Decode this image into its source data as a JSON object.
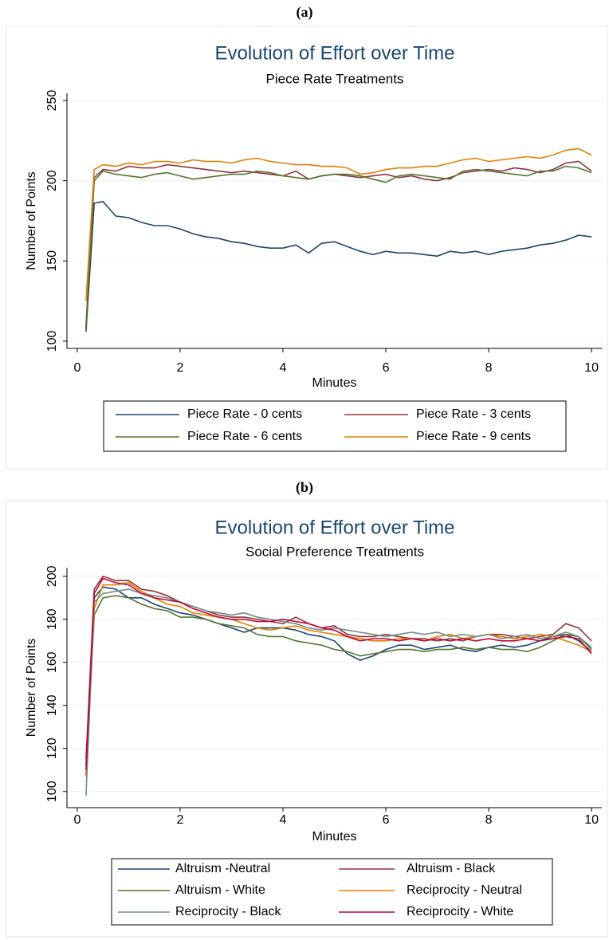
{
  "chart_data": [
    {
      "type": "line",
      "label": "(a)",
      "title": "Evolution of Effort over Time",
      "subtitle": "Piece Rate Treatments",
      "x_label": "Minutes",
      "y_label": "Number of Points",
      "x": [
        0.17,
        0.33,
        0.5,
        0.75,
        1,
        1.25,
        1.5,
        1.75,
        2,
        2.25,
        2.5,
        2.75,
        3,
        3.25,
        3.5,
        3.75,
        4,
        4.25,
        4.5,
        4.75,
        5,
        5.25,
        5.5,
        5.75,
        6,
        6.25,
        6.5,
        6.75,
        7,
        7.25,
        7.5,
        7.75,
        8,
        8.25,
        8.5,
        8.75,
        9,
        9.25,
        9.5,
        9.75,
        10
      ],
      "xlim": [
        -0.2,
        10.2
      ],
      "xticks": [
        0,
        2,
        4,
        6,
        8,
        10
      ],
      "ylim": [
        95.5,
        254.5
      ],
      "yticks": [
        100,
        150,
        200,
        250
      ],
      "grid": true,
      "legend": "bottom",
      "series": [
        {
          "name": "Piece Rate - 0 cents",
          "color": "#1a476f",
          "values": [
            106,
            186,
            187,
            178,
            177,
            174,
            172,
            172,
            170,
            167,
            165,
            164,
            162,
            161,
            159,
            158,
            158,
            160,
            155,
            161,
            162,
            159,
            156,
            154,
            156,
            155,
            155,
            154,
            153,
            156,
            155,
            156,
            154,
            156,
            157,
            158,
            160,
            161,
            163,
            166,
            165
          ]
        },
        {
          "name": "Piece Rate - 3 cents",
          "color": "#90353b",
          "values": [
            108,
            202,
            207,
            206,
            209,
            208,
            208,
            210,
            209,
            208,
            207,
            206,
            205,
            206,
            205,
            204,
            203,
            206,
            201,
            203,
            204,
            203,
            202,
            203,
            204,
            202,
            203,
            201,
            200,
            202,
            205,
            206,
            207,
            206,
            208,
            207,
            205,
            207,
            211,
            212,
            206
          ]
        },
        {
          "name": "Piece Rate - 6 cents",
          "color": "#55752f",
          "values": [
            110,
            200,
            206,
            204,
            203,
            202,
            204,
            205,
            203,
            201,
            202,
            203,
            204,
            204,
            206,
            205,
            203,
            202,
            201,
            203,
            204,
            204,
            203,
            201,
            199,
            203,
            204,
            203,
            202,
            201,
            206,
            207,
            206,
            205,
            204,
            203,
            206,
            206,
            209,
            208,
            205
          ]
        },
        {
          "name": "Piece Rate - 9 cents",
          "color": "#e37e00",
          "values": [
            125,
            207,
            210,
            209,
            211,
            210,
            212,
            212,
            211,
            213,
            212,
            212,
            211,
            213,
            214,
            212,
            211,
            210,
            210,
            209,
            209,
            208,
            204,
            205,
            207,
            208,
            208,
            209,
            209,
            211,
            213,
            214,
            212,
            213,
            214,
            215,
            214,
            216,
            219,
            220,
            216
          ]
        }
      ]
    },
    {
      "type": "line",
      "label": "(b)",
      "title": "Evolution of Effort over Time",
      "subtitle": "Social Preference Treatments",
      "x_label": "Minutes",
      "y_label": "Number of Points",
      "x": [
        0.17,
        0.33,
        0.5,
        0.75,
        1,
        1.25,
        1.5,
        1.75,
        2,
        2.25,
        2.5,
        2.75,
        3,
        3.25,
        3.5,
        3.75,
        4,
        4.25,
        4.5,
        4.75,
        5,
        5.25,
        5.5,
        5.75,
        6,
        6.25,
        6.5,
        6.75,
        7,
        7.25,
        7.5,
        7.75,
        8,
        8.25,
        8.5,
        8.75,
        9,
        9.25,
        9.5,
        9.75,
        10
      ],
      "xlim": [
        -0.2,
        10.2
      ],
      "xticks": [
        0,
        2,
        4,
        6,
        8,
        10
      ],
      "ylim": [
        92.5,
        204
      ],
      "yticks": [
        100,
        120,
        140,
        160,
        180,
        200
      ],
      "grid": true,
      "legend": "bottom",
      "series": [
        {
          "name": "Altruism -Neutral",
          "color": "#1a476f",
          "values": [
            112,
            190,
            195,
            194,
            190,
            190,
            187,
            185,
            183,
            182,
            180,
            178,
            176,
            174,
            176,
            176,
            176,
            175,
            173,
            172,
            170,
            164,
            161,
            163,
            166,
            168,
            168,
            166,
            167,
            168,
            166,
            165,
            167,
            168,
            167,
            168,
            170,
            172,
            173,
            170,
            165
          ]
        },
        {
          "name": "Altruism - Black",
          "color": "#90353b",
          "values": [
            115,
            194,
            200,
            198,
            198,
            194,
            193,
            191,
            188,
            186,
            184,
            182,
            181,
            181,
            180,
            179,
            178,
            181,
            178,
            176,
            177,
            173,
            172,
            172,
            173,
            172,
            171,
            171,
            170,
            171,
            170,
            172,
            173,
            173,
            172,
            171,
            172,
            173,
            178,
            176,
            170
          ]
        },
        {
          "name": "Altruism - White",
          "color": "#55752f",
          "values": [
            108,
            182,
            190,
            191,
            190,
            187,
            185,
            184,
            181,
            181,
            180,
            178,
            177,
            176,
            173,
            172,
            172,
            170,
            169,
            168,
            166,
            165,
            163,
            164,
            165,
            166,
            166,
            165,
            166,
            166,
            167,
            166,
            167,
            166,
            166,
            165,
            167,
            170,
            173,
            172,
            166
          ]
        },
        {
          "name": "Reciprocity - Neutral",
          "color": "#e37e00",
          "values": [
            107,
            185,
            196,
            196,
            197,
            193,
            190,
            187,
            186,
            183,
            182,
            181,
            180,
            178,
            176,
            175,
            176,
            177,
            175,
            174,
            173,
            172,
            171,
            170,
            170,
            171,
            171,
            170,
            172,
            173,
            171,
            172,
            173,
            172,
            171,
            172,
            173,
            172,
            170,
            168,
            165
          ]
        },
        {
          "name": "Reciprocity - Black",
          "color": "#6e8e84",
          "values": [
            98,
            188,
            192,
            193,
            194,
            192,
            191,
            190,
            188,
            186,
            184,
            183,
            182,
            183,
            181,
            180,
            179,
            178,
            176,
            175,
            176,
            175,
            174,
            173,
            172,
            173,
            174,
            173,
            174,
            172,
            173,
            172,
            173,
            171,
            172,
            173,
            171,
            172,
            174,
            172,
            167
          ]
        },
        {
          "name": "Reciprocity - White",
          "color": "#c10534",
          "values": [
            110,
            192,
            199,
            197,
            196,
            192,
            190,
            189,
            188,
            185,
            183,
            181,
            180,
            180,
            179,
            179,
            180,
            179,
            178,
            176,
            175,
            172,
            170,
            171,
            171,
            170,
            171,
            170,
            171,
            170,
            171,
            170,
            171,
            170,
            170,
            171,
            170,
            171,
            172,
            171,
            164
          ]
        }
      ]
    }
  ]
}
